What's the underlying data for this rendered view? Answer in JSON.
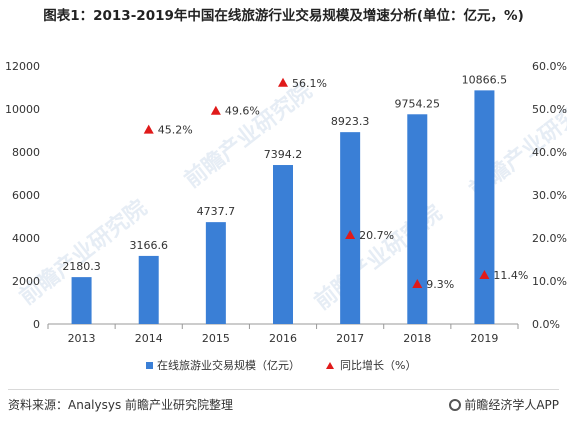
{
  "title": "图表1：2013-2019年中国在线旅游行业交易规模及增速分析(单位：亿元，%)",
  "source_text": "资料来源：Analysys 前瞻产业研究院整理",
  "brand_text": "前瞻经济学人APP",
  "watermark_text": "前瞻产业研究院",
  "colors": {
    "bar": "#3a7fd6",
    "marker": "#e01a1a",
    "axis": "#999999"
  },
  "chart_data": {
    "type": "bar",
    "categories": [
      "2013",
      "2014",
      "2015",
      "2016",
      "2017",
      "2018",
      "2019"
    ],
    "series": [
      {
        "name": "在线旅游业交易规模（亿元）",
        "kind": "bar",
        "axis": "left",
        "values": [
          2180.3,
          3166.6,
          4737.7,
          7394.2,
          8923.3,
          9754.25,
          10866.5
        ],
        "labels": [
          "2180.3",
          "3166.6",
          "4737.7",
          "7394.2",
          "8923.3",
          "9754.25",
          "10866.5"
        ]
      },
      {
        "name": "同比增长（%）",
        "kind": "marker",
        "axis": "right",
        "values": [
          null,
          45.2,
          49.6,
          56.1,
          20.7,
          9.3,
          11.4
        ],
        "labels": [
          null,
          "45.2%",
          "49.6%",
          "56.1%",
          "20.7%",
          "9.3%",
          "11.4%"
        ]
      }
    ],
    "ylim_left": [
      0,
      12000
    ],
    "yticks_left": [
      "0",
      "2000",
      "4000",
      "6000",
      "8000",
      "10000",
      "12000"
    ],
    "ylim_right": [
      0,
      60
    ],
    "yticks_right": [
      "0.0%",
      "10.0%",
      "20.0%",
      "30.0%",
      "40.0%",
      "50.0%",
      "60.0%"
    ],
    "grid": false,
    "legend_position": "bottom"
  }
}
